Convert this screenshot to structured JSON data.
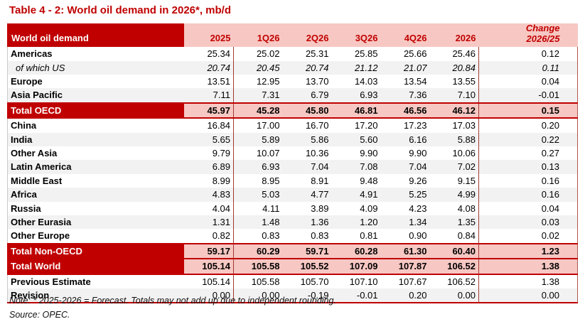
{
  "title": "Table 4 - 2: World oil demand in 2026*, mb/d",
  "table": {
    "header": {
      "label": "World oil demand",
      "columns": [
        "2025",
        "1Q26",
        "2Q26",
        "3Q26",
        "4Q26",
        "2026"
      ],
      "change_line1": "Change",
      "change_line2": "2026/25"
    },
    "rows": [
      {
        "label": "Americas",
        "type": "region",
        "values": [
          "25.34",
          "25.02",
          "25.31",
          "25.85",
          "25.66",
          "25.46",
          "0.12"
        ]
      },
      {
        "label": "of which US",
        "type": "sub",
        "values": [
          "20.74",
          "20.45",
          "20.74",
          "21.12",
          "21.07",
          "20.84",
          "0.11"
        ]
      },
      {
        "label": "Europe",
        "type": "region",
        "values": [
          "13.51",
          "12.95",
          "13.70",
          "14.03",
          "13.54",
          "13.55",
          "0.04"
        ]
      },
      {
        "label": "Asia Pacific",
        "type": "region",
        "values": [
          "7.11",
          "7.31",
          "6.79",
          "6.93",
          "7.36",
          "7.10",
          "-0.01"
        ]
      },
      {
        "label": "Total OECD",
        "type": "total",
        "values": [
          "45.97",
          "45.28",
          "45.80",
          "46.81",
          "46.56",
          "46.12",
          "0.15"
        ]
      },
      {
        "label": "China",
        "type": "region",
        "values": [
          "16.84",
          "17.00",
          "16.70",
          "17.20",
          "17.23",
          "17.03",
          "0.20"
        ]
      },
      {
        "label": "India",
        "type": "region",
        "values": [
          "5.65",
          "5.89",
          "5.86",
          "5.60",
          "6.16",
          "5.88",
          "0.22"
        ]
      },
      {
        "label": "Other Asia",
        "type": "region",
        "values": [
          "9.79",
          "10.07",
          "10.36",
          "9.90",
          "9.90",
          "10.06",
          "0.27"
        ]
      },
      {
        "label": "Latin America",
        "type": "region",
        "values": [
          "6.89",
          "6.93",
          "7.04",
          "7.08",
          "7.04",
          "7.02",
          "0.13"
        ]
      },
      {
        "label": "Middle East",
        "type": "region",
        "values": [
          "8.99",
          "8.95",
          "8.91",
          "9.48",
          "9.26",
          "9.15",
          "0.16"
        ]
      },
      {
        "label": "Africa",
        "type": "region",
        "values": [
          "4.83",
          "5.03",
          "4.77",
          "4.91",
          "5.25",
          "4.99",
          "0.16"
        ]
      },
      {
        "label": "Russia",
        "type": "region",
        "values": [
          "4.04",
          "4.11",
          "3.89",
          "4.09",
          "4.23",
          "4.08",
          "0.04"
        ]
      },
      {
        "label": "Other Eurasia",
        "type": "region",
        "values": [
          "1.31",
          "1.48",
          "1.36",
          "1.20",
          "1.34",
          "1.35",
          "0.03"
        ]
      },
      {
        "label": "Other Europe",
        "type": "region",
        "values": [
          "0.82",
          "0.83",
          "0.83",
          "0.81",
          "0.90",
          "0.84",
          "0.02"
        ]
      },
      {
        "label": "Total Non-OECD",
        "type": "total",
        "values": [
          "59.17",
          "60.29",
          "59.71",
          "60.28",
          "61.30",
          "60.40",
          "1.23"
        ]
      },
      {
        "label": "Total World",
        "type": "total",
        "values": [
          "105.14",
          "105.58",
          "105.52",
          "107.09",
          "107.87",
          "106.52",
          "1.38"
        ]
      },
      {
        "label": "Previous Estimate",
        "type": "region",
        "values": [
          "105.14",
          "105.58",
          "105.70",
          "107.10",
          "107.67",
          "106.52",
          "1.38"
        ]
      },
      {
        "label": "Revision",
        "type": "region",
        "values": [
          "0.00",
          "0.00",
          "-0.19",
          "-0.01",
          "0.20",
          "0.00",
          "0.00"
        ]
      }
    ]
  },
  "notes": {
    "note": "Note: * 2025-2026 = Forecast. Totals may not add up due to independent rounding.",
    "source": "Source: OPEC."
  },
  "colors": {
    "brand_red": "#c00000",
    "highlight_pink": "#f7c8c3",
    "stripe_gray": "#f2f2f2",
    "separator_red": "#a23b34"
  }
}
